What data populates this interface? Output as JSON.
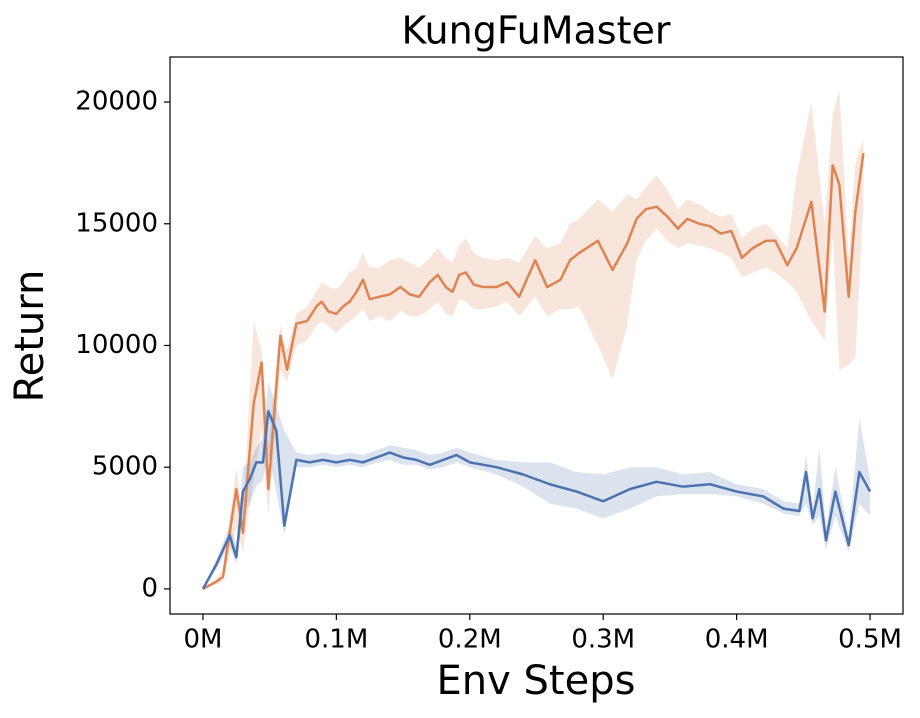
{
  "chart_data": {
    "type": "line",
    "title": "KungFuMaster",
    "x_label": "Env Steps",
    "y_label": "Return",
    "xlim": [
      -24700,
      524700
    ],
    "ylim": [
      -1030,
      21850
    ],
    "xticks": [
      {
        "value": 0,
        "label": "0M"
      },
      {
        "value": 100000,
        "label": "0.1M"
      },
      {
        "value": 200000,
        "label": "0.2M"
      },
      {
        "value": 300000,
        "label": "0.3M"
      },
      {
        "value": 400000,
        "label": "0.4M"
      },
      {
        "value": 500000,
        "label": "0.5M"
      }
    ],
    "yticks": [
      0,
      5000,
      10000,
      15000,
      20000
    ],
    "grid": false,
    "series": [
      {
        "color": "#dd8452",
        "x": [
          0,
          10000,
          15000,
          25000,
          30000,
          38000,
          44000,
          49000,
          58000,
          63000,
          70000,
          78000,
          85000,
          89000,
          94000,
          100000,
          105000,
          110000,
          115000,
          120000,
          125000,
          132000,
          140000,
          148000,
          155000,
          162000,
          170000,
          176000,
          182000,
          187000,
          192000,
          197000,
          203000,
          210000,
          220000,
          228000,
          237000,
          249000,
          258000,
          268000,
          275000,
          282000,
          296000,
          307000,
          318000,
          325000,
          332000,
          340000,
          348000,
          356000,
          363000,
          372000,
          380000,
          388000,
          396000,
          404000,
          412000,
          422000,
          429000,
          438000,
          445000,
          456000,
          466000,
          472000,
          477000,
          484000,
          489000,
          495000
        ],
        "values": [
          0,
          300,
          500,
          4100,
          2300,
          7600,
          9300,
          4100,
          10400,
          9000,
          10900,
          11000,
          11600,
          11800,
          11400,
          11300,
          11600,
          11800,
          12200,
          12700,
          11900,
          12000,
          12100,
          12400,
          12100,
          12000,
          12600,
          12900,
          12400,
          12200,
          12900,
          13000,
          12500,
          12400,
          12400,
          12600,
          12000,
          13500,
          12400,
          12700,
          13500,
          13800,
          14300,
          13100,
          14200,
          15200,
          15600,
          15700,
          15300,
          14800,
          15200,
          15000,
          14900,
          14600,
          14700,
          13600,
          14000,
          14300,
          14300,
          13300,
          14000,
          15900,
          11400,
          17400,
          16600,
          12000,
          15500,
          17900
        ],
        "lower": [
          0,
          200,
          300,
          2500,
          1500,
          4500,
          6500,
          3000,
          9000,
          8500,
          10000,
          10200,
          10800,
          11000,
          10800,
          10500,
          10800,
          11000,
          11200,
          11500,
          11000,
          11200,
          11000,
          11400,
          11200,
          11200,
          11500,
          11800,
          11300,
          11200,
          11900,
          11800,
          11500,
          11500,
          11600,
          11800,
          11200,
          12000,
          11200,
          11500,
          11500,
          11600,
          10000,
          8600,
          10800,
          13500,
          14300,
          14800,
          14300,
          14000,
          14200,
          14100,
          14000,
          13800,
          13600,
          12800,
          13000,
          13200,
          13000,
          12600,
          12200,
          11000,
          10200,
          14500,
          9000,
          9200,
          9500,
          15800
        ],
        "upper": [
          0,
          400,
          800,
          5000,
          3000,
          11000,
          9800,
          6000,
          10800,
          9800,
          11300,
          11600,
          12200,
          12600,
          12400,
          12300,
          12600,
          13000,
          13200,
          13800,
          13200,
          13200,
          13500,
          13600,
          13400,
          13200,
          13600,
          14000,
          13600,
          13400,
          14100,
          14400,
          13800,
          13600,
          13500,
          13600,
          13400,
          14500,
          14000,
          14200,
          15000,
          15200,
          16000,
          15500,
          16200,
          16000,
          16500,
          17000,
          16400,
          15600,
          16000,
          15800,
          15500,
          15300,
          15400,
          14400,
          14800,
          15000,
          14600,
          14000,
          17000,
          20000,
          15000,
          19500,
          20500,
          13600,
          17500,
          18500
        ]
      },
      {
        "color": "#4c72b0",
        "x": [
          0,
          10000,
          20000,
          25000,
          30000,
          35000,
          40000,
          45000,
          49000,
          55000,
          61000,
          70000,
          80000,
          90000,
          100000,
          110000,
          120000,
          130000,
          140000,
          150000,
          160000,
          170000,
          180000,
          190000,
          200000,
          220000,
          240000,
          260000,
          280000,
          300000,
          320000,
          340000,
          360000,
          380000,
          400000,
          420000,
          435000,
          447000,
          452000,
          457000,
          462000,
          467000,
          474000,
          484000,
          492000,
          500000
        ],
        "values": [
          0,
          1000,
          2200,
          1300,
          4000,
          4500,
          5200,
          5200,
          7300,
          6500,
          2600,
          5300,
          5200,
          5300,
          5200,
          5300,
          5200,
          5400,
          5600,
          5400,
          5300,
          5100,
          5300,
          5500,
          5200,
          5000,
          4700,
          4300,
          4000,
          3600,
          4100,
          4400,
          4200,
          4300,
          4000,
          3800,
          3300,
          3200,
          4800,
          2900,
          4100,
          2000,
          4000,
          1800,
          4800,
          4000
        ],
        "lower": [
          0,
          800,
          1800,
          1000,
          3000,
          3500,
          4200,
          4500,
          5500,
          4000,
          2200,
          5000,
          5000,
          5100,
          5000,
          5100,
          5000,
          5200,
          5300,
          5100,
          5100,
          4900,
          5000,
          5200,
          5000,
          4700,
          4200,
          3500,
          3300,
          2900,
          3300,
          3800,
          3900,
          3900,
          3800,
          3500,
          3100,
          3000,
          3500,
          2600,
          3000,
          1600,
          3000,
          1500,
          3500,
          3000
        ],
        "upper": [
          0,
          1200,
          2600,
          1800,
          5000,
          5200,
          5800,
          6200,
          8500,
          7500,
          6500,
          5600,
          5500,
          5600,
          5500,
          5600,
          5500,
          5700,
          5900,
          5800,
          5700,
          5500,
          5600,
          5800,
          5600,
          5300,
          5200,
          5200,
          4800,
          4700,
          5000,
          5000,
          4700,
          4800,
          4300,
          4100,
          3600,
          3500,
          5500,
          3300,
          5800,
          2500,
          5000,
          2200,
          7000,
          4500
        ]
      }
    ]
  }
}
